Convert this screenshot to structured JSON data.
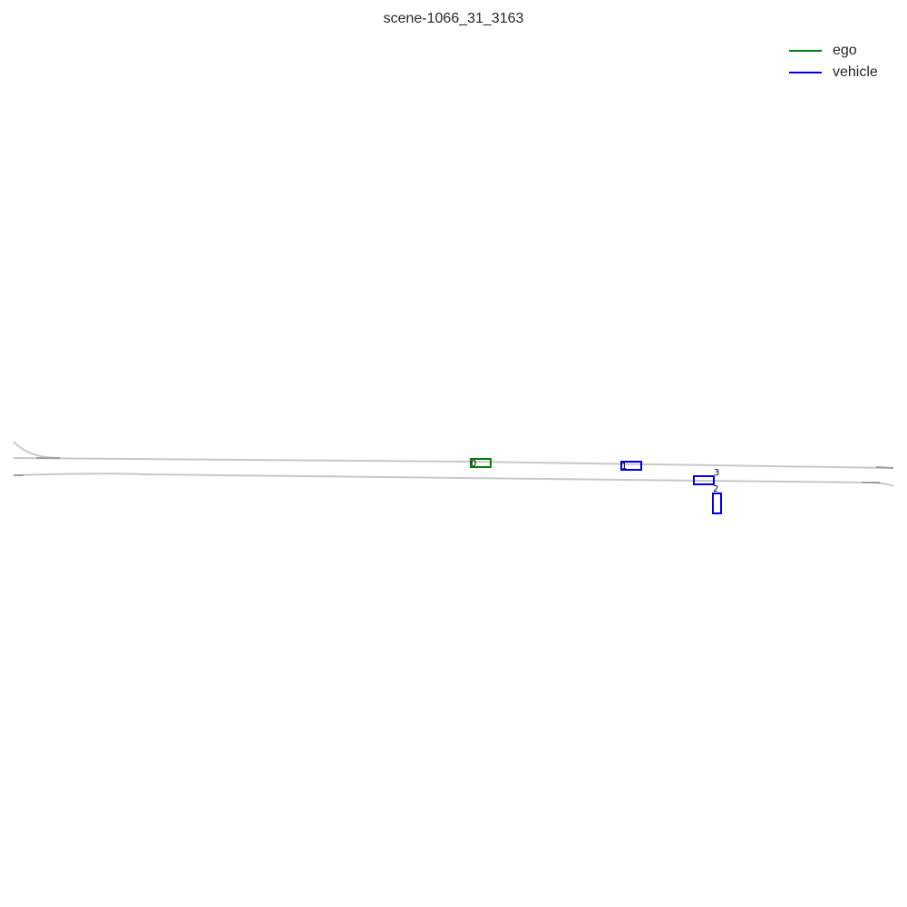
{
  "title": "scene-1066_31_3163",
  "legend": [
    {
      "label": "ego",
      "color": "#008000"
    },
    {
      "label": "vehicle",
      "color": "#0000e6"
    }
  ],
  "colors": {
    "lane": "#c8c8c8",
    "lane_end": "#a0a0a0",
    "ego": "#008000",
    "vehicle": "#0000e6"
  },
  "agents": [
    {
      "id": "0",
      "type": "ego"
    },
    {
      "id": "1",
      "type": "vehicle"
    },
    {
      "id": "2",
      "type": "vehicle"
    },
    {
      "id": "3",
      "type": "vehicle"
    }
  ]
}
